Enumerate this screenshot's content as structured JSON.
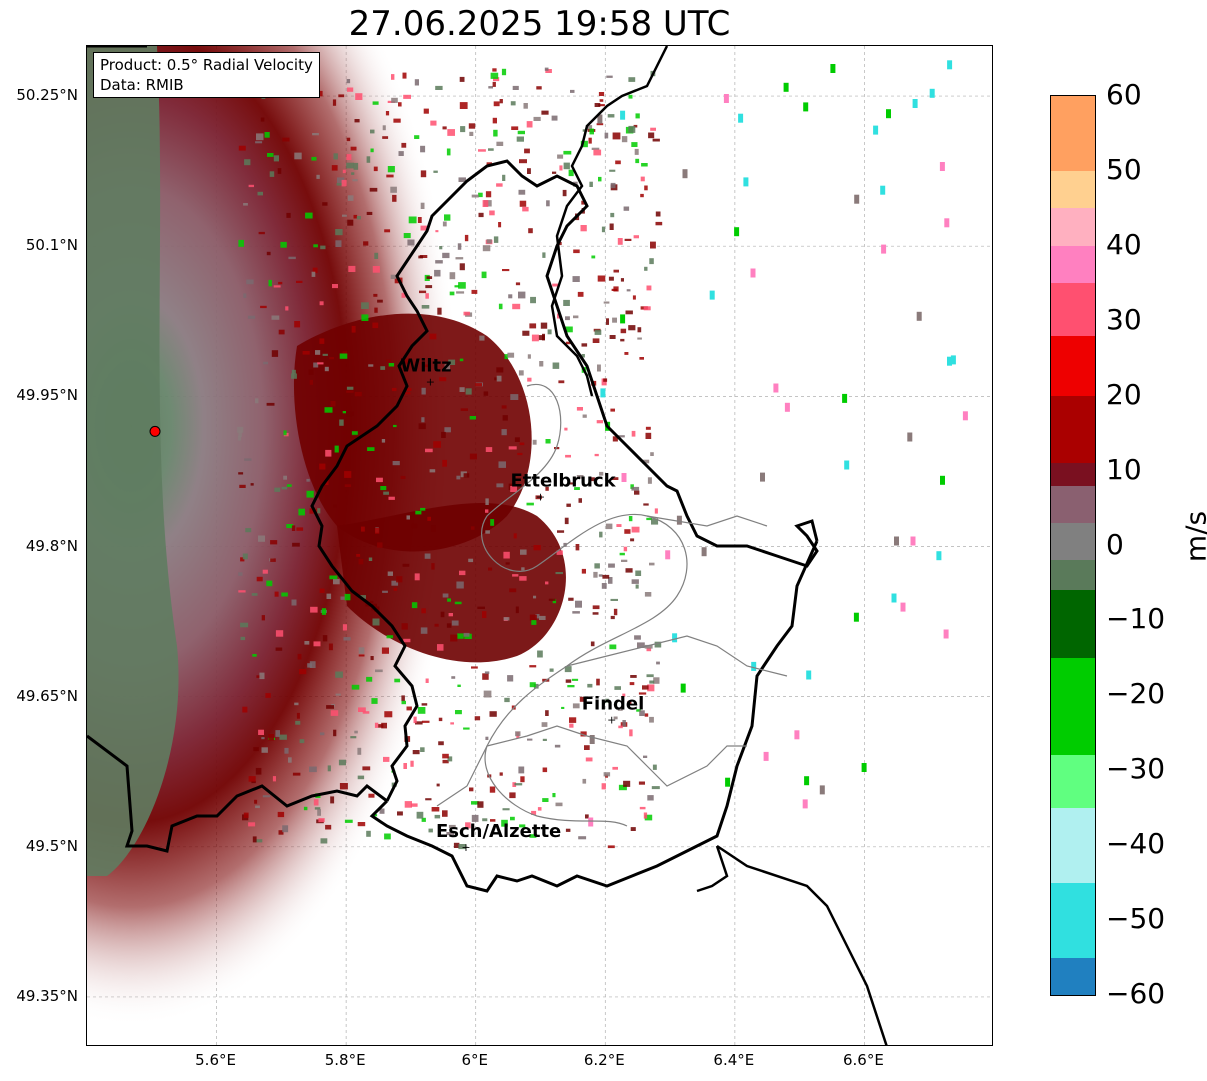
{
  "title": "27.06.2025 19:58 UTC",
  "info_box": {
    "product": "Product: 0.5° Radial Velocity",
    "data_source": "Data: RMIB"
  },
  "axes": {
    "lon_range": [
      5.4,
      6.8
    ],
    "lat_range": [
      49.3,
      50.3
    ],
    "lat_ticks": [
      {
        "value": 50.25,
        "label": "50.25°N"
      },
      {
        "value": 50.1,
        "label": "50.1°N"
      },
      {
        "value": 49.95,
        "label": "49.95°N"
      },
      {
        "value": 49.8,
        "label": "49.8°N"
      },
      {
        "value": 49.65,
        "label": "49.65°N"
      },
      {
        "value": 49.5,
        "label": "49.5°N"
      },
      {
        "value": 49.35,
        "label": "49.35°N"
      }
    ],
    "lon_ticks": [
      {
        "value": 5.6,
        "label": "5.6°E"
      },
      {
        "value": 5.8,
        "label": "5.8°E"
      },
      {
        "value": 6.0,
        "label": "6°E"
      },
      {
        "value": 6.2,
        "label": "6.2°E"
      },
      {
        "value": 6.4,
        "label": "6.4°E"
      },
      {
        "value": 6.6,
        "label": "6.6°E"
      }
    ],
    "grid": true
  },
  "cities": [
    {
      "name": "Wiltz",
      "display": "Wiltz",
      "lon": 5.93,
      "lat": 49.965
    },
    {
      "name": "Ettelbruck",
      "display": "Ettelbruck",
      "lon": 6.1,
      "lat": 49.85
    },
    {
      "name": "Findel",
      "display": "Findel",
      "lon": 6.21,
      "lat": 49.627
    },
    {
      "name": "Esch/Alzette",
      "display": "Esch/Alzette",
      "lon": 5.985,
      "lat": 49.5
    }
  ],
  "radar_site": {
    "lon": 5.505,
    "lat": 49.915,
    "color": "#ff0000"
  },
  "colorbar": {
    "unit": "m/s",
    "min": -60,
    "max": 60,
    "ticks": [
      {
        "value": 60,
        "label": "60"
      },
      {
        "value": 50,
        "label": "50"
      },
      {
        "value": 40,
        "label": "40"
      },
      {
        "value": 30,
        "label": "30"
      },
      {
        "value": 20,
        "label": "20"
      },
      {
        "value": 10,
        "label": "10"
      },
      {
        "value": 0,
        "label": "0"
      },
      {
        "value": -10,
        "label": "−10"
      },
      {
        "value": -20,
        "label": "−20"
      },
      {
        "value": -30,
        "label": "−30"
      },
      {
        "value": -40,
        "label": "−40"
      },
      {
        "value": -50,
        "label": "−50"
      },
      {
        "value": -60,
        "label": "−60"
      }
    ],
    "stops": [
      {
        "from": 50,
        "to": 60,
        "color": "#ffa060"
      },
      {
        "from": 45,
        "to": 50,
        "color": "#ffd090"
      },
      {
        "from": 40,
        "to": 45,
        "color": "#ffb0c0"
      },
      {
        "from": 35,
        "to": 40,
        "color": "#ff80c0"
      },
      {
        "from": 28,
        "to": 35,
        "color": "#ff5070"
      },
      {
        "from": 20,
        "to": 28,
        "color": "#ee0000"
      },
      {
        "from": 11,
        "to": 20,
        "color": "#aa0000"
      },
      {
        "from": 8,
        "to": 11,
        "color": "#7a1020"
      },
      {
        "from": 3,
        "to": 8,
        "color": "#8a6070"
      },
      {
        "from": -2,
        "to": 3,
        "color": "#808080"
      },
      {
        "from": -6,
        "to": -2,
        "color": "#5a7a5a"
      },
      {
        "from": -15,
        "to": -6,
        "color": "#006600"
      },
      {
        "from": -28,
        "to": -15,
        "color": "#00cc00"
      },
      {
        "from": -35,
        "to": -28,
        "color": "#60ff80"
      },
      {
        "from": -45,
        "to": -35,
        "color": "#b0f0f0"
      },
      {
        "from": -55,
        "to": -45,
        "color": "#30e0e0"
      },
      {
        "from": -60,
        "to": -55,
        "color": "#2080c0"
      }
    ]
  },
  "colors": {
    "ground_clutter_green": "#5a7a5a",
    "light_mauve": "#8a7078",
    "dark_red": "#700000",
    "border_black": "#000000",
    "canton_gray": "#808080"
  }
}
